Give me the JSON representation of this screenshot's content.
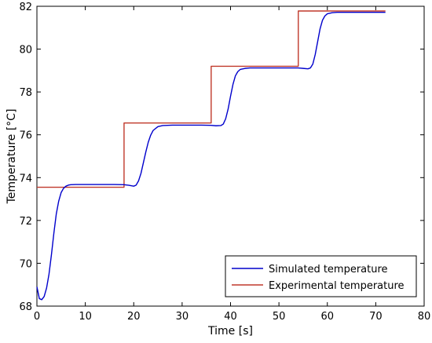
{
  "chart_data": {
    "type": "line",
    "xlabel": "Time [s]",
    "ylabel": "Temperature [°C]",
    "xlim": [
      0,
      80
    ],
    "ylim": [
      68,
      82
    ],
    "xticks": [
      "0",
      "10",
      "20",
      "30",
      "40",
      "50",
      "60",
      "70",
      "80"
    ],
    "yticks": [
      "68",
      "70",
      "72",
      "74",
      "76",
      "78",
      "80",
      "82"
    ],
    "grid": false,
    "legend_position": "bottom-right",
    "series": [
      {
        "name": "Simulated temperature",
        "color": "#0000cc",
        "x": [
          0,
          0.5,
          1,
          1.5,
          2,
          2.5,
          3,
          3.5,
          4,
          4.5,
          5,
          5.5,
          6,
          6.5,
          7,
          8,
          9,
          10,
          12,
          14,
          16,
          18,
          19,
          20,
          20.5,
          21,
          21.5,
          22,
          22.5,
          23,
          23.5,
          24,
          25,
          26,
          28,
          30,
          32,
          34,
          36,
          37,
          38,
          38.5,
          39,
          39.5,
          40,
          40.5,
          41,
          41.5,
          42,
          43,
          44,
          46,
          48,
          50,
          52,
          54,
          55,
          56,
          56.5,
          57,
          57.5,
          58,
          58.5,
          59,
          59.5,
          60,
          61,
          62,
          64,
          66,
          68,
          70,
          72
        ],
        "y": [
          68.9,
          68.35,
          68.3,
          68.45,
          68.85,
          69.5,
          70.4,
          71.4,
          72.3,
          72.9,
          73.3,
          73.5,
          73.6,
          73.65,
          73.67,
          73.68,
          73.68,
          73.68,
          73.68,
          73.68,
          73.68,
          73.67,
          73.64,
          73.6,
          73.65,
          73.85,
          74.2,
          74.7,
          75.2,
          75.65,
          75.98,
          76.2,
          76.38,
          76.43,
          76.45,
          76.45,
          76.45,
          76.45,
          76.44,
          76.42,
          76.43,
          76.5,
          76.75,
          77.2,
          77.8,
          78.35,
          78.75,
          78.95,
          79.05,
          79.1,
          79.12,
          79.12,
          79.12,
          79.12,
          79.12,
          79.12,
          79.1,
          79.08,
          79.12,
          79.3,
          79.75,
          80.35,
          80.95,
          81.35,
          81.55,
          81.65,
          81.7,
          81.72,
          81.72,
          81.72,
          81.72,
          81.72,
          81.72
        ]
      },
      {
        "name": "Experimental temperature",
        "color": "#c0392b",
        "x": [
          0,
          18,
          18,
          36,
          36,
          54,
          54,
          72
        ],
        "y": [
          73.55,
          73.55,
          76.55,
          76.55,
          79.2,
          79.2,
          81.78,
          81.78
        ]
      }
    ]
  }
}
